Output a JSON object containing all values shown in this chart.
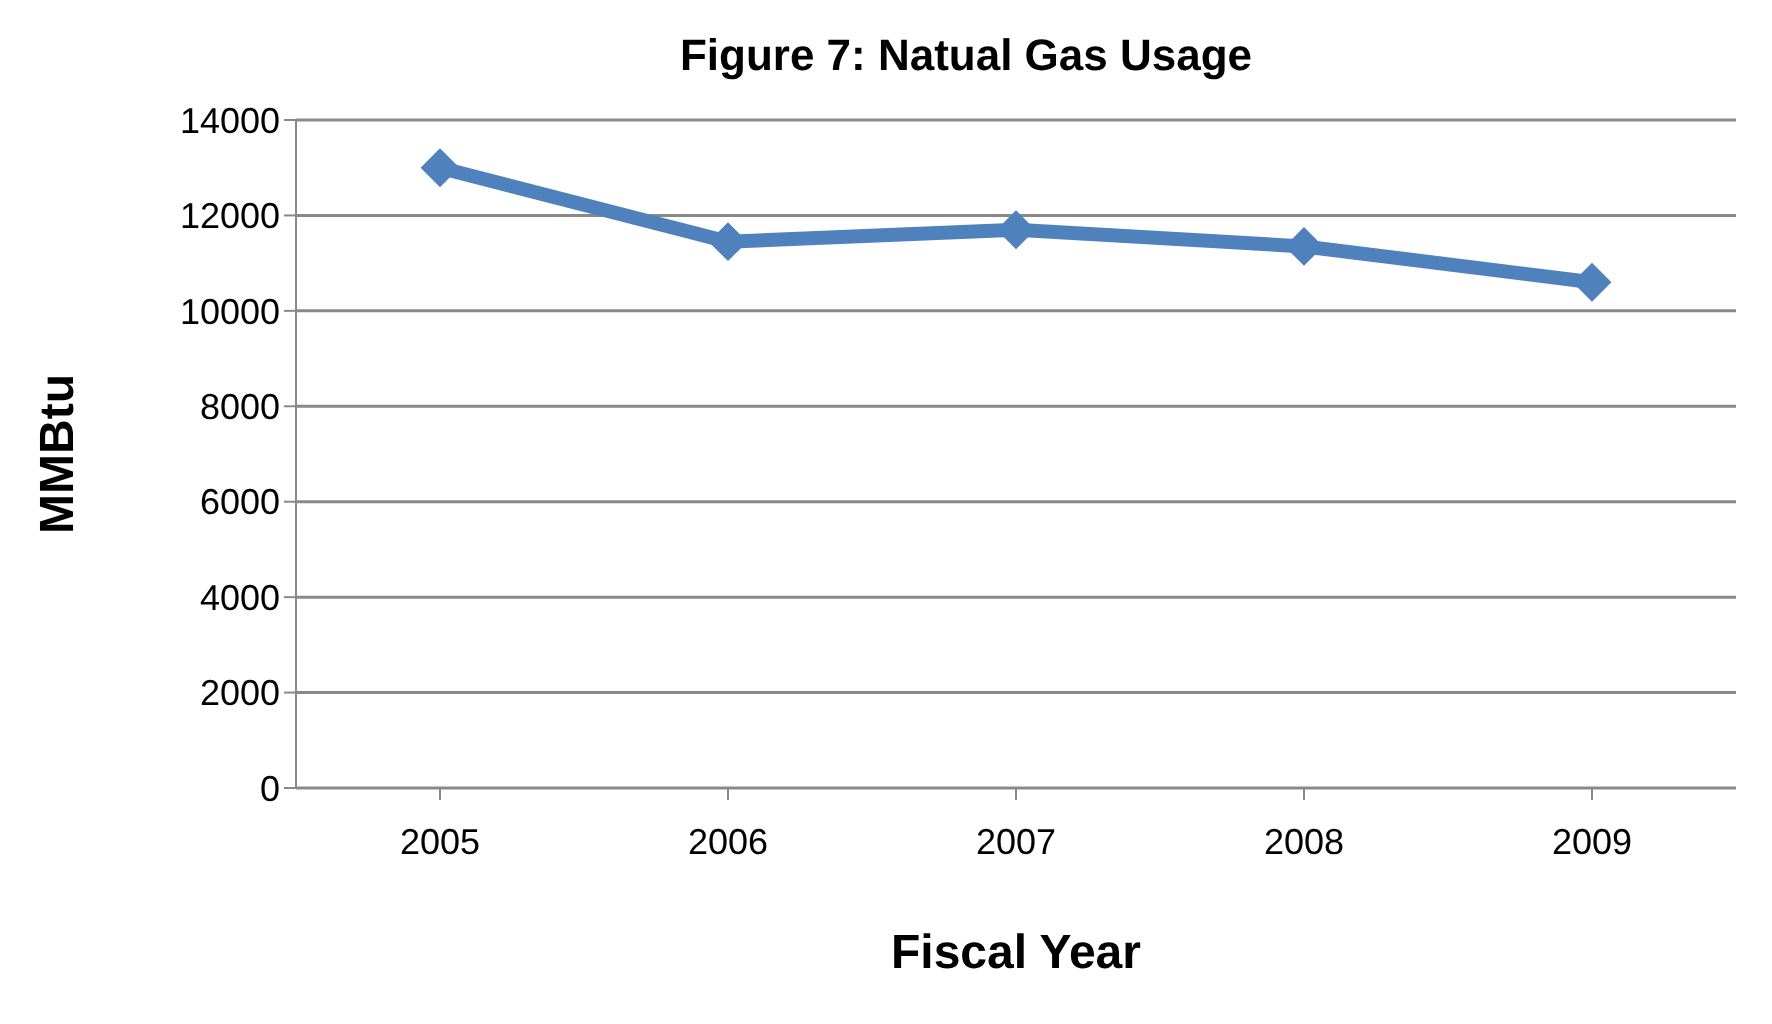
{
  "chart_data": {
    "type": "line",
    "title": "Figure 7: Natual Gas Usage",
    "xlabel": "Fiscal Year",
    "ylabel": "MMBtu",
    "categories": [
      "2005",
      "2006",
      "2007",
      "2008",
      "2009"
    ],
    "series": [
      {
        "color": "#4f81bd",
        "values": [
          13000,
          11450,
          11700,
          11350,
          10600
        ]
      }
    ],
    "ylim": [
      0,
      14000
    ],
    "yticks": [
      0,
      2000,
      4000,
      6000,
      8000,
      10000,
      12000,
      14000
    ],
    "grid": "y",
    "marker": "diamond",
    "line_style": "solid"
  }
}
